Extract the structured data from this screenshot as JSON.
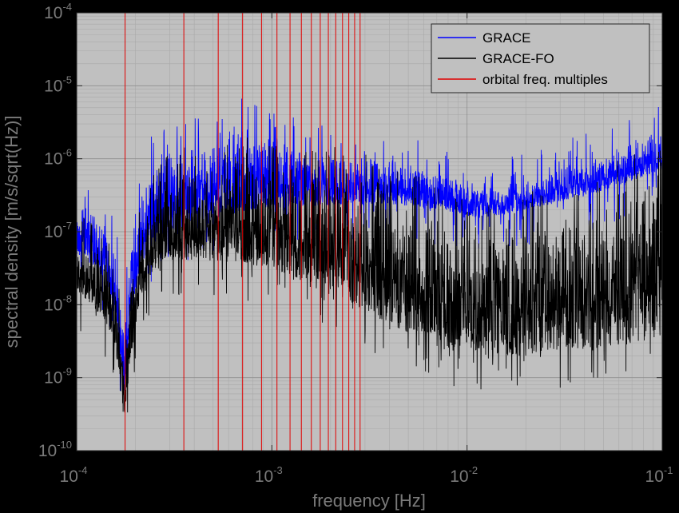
{
  "chart_data": {
    "type": "line",
    "xscale": "log",
    "yscale": "log",
    "xlim": [
      0.0001,
      0.1
    ],
    "ylim": [
      1e-10,
      0.0001
    ],
    "xlabel": "frequency [Hz]",
    "ylabel": "spectral density [m/s/sqrt(Hz)]",
    "grid": true,
    "legend_position": "top-right",
    "x_ticks": [
      {
        "base": "10",
        "exp": "-4",
        "value": 0.0001
      },
      {
        "base": "10",
        "exp": "-3",
        "value": 0.001
      },
      {
        "base": "10",
        "exp": "-2",
        "value": 0.01
      },
      {
        "base": "10",
        "exp": "-1",
        "value": 0.1
      }
    ],
    "y_ticks": [
      {
        "base": "10",
        "exp": "-10",
        "value": 1e-10
      },
      {
        "base": "10",
        "exp": "-9",
        "value": 1e-09
      },
      {
        "base": "10",
        "exp": "-8",
        "value": 1e-08
      },
      {
        "base": "10",
        "exp": "-7",
        "value": 1e-07
      },
      {
        "base": "10",
        "exp": "-6",
        "value": 1e-06
      },
      {
        "base": "10",
        "exp": "-5",
        "value": 1e-05
      },
      {
        "base": "10",
        "exp": "-4",
        "value": 0.0001
      }
    ],
    "series": [
      {
        "name": "GRACE",
        "color": "#0000ff",
        "upper": [
          [
            0.0001,
            2.5e-07
          ],
          [
            0.00012,
            2.2e-07
          ],
          [
            0.00014,
            1.4e-07
          ],
          [
            0.00016,
            5e-08
          ],
          [
            0.000175,
            6e-09
          ],
          [
            0.00019,
            6e-08
          ],
          [
            0.00021,
            3e-07
          ],
          [
            0.00024,
            1e-06
          ],
          [
            0.00028,
            1.5e-06
          ],
          [
            0.00035,
            1.6e-06
          ],
          [
            0.0005,
            1.8e-06
          ],
          [
            0.0007,
            3e-06
          ],
          [
            0.0009,
            2.5e-06
          ],
          [
            0.0012,
            2e-06
          ],
          [
            0.0018,
            1.5e-06
          ],
          [
            0.0025,
            1.2e-06
          ],
          [
            0.004,
            1e-06
          ],
          [
            0.006,
            8e-07
          ],
          [
            0.009,
            5.5e-07
          ],
          [
            0.012,
            4.2e-07
          ],
          [
            0.02,
            5.5e-07
          ],
          [
            0.04,
            1e-06
          ],
          [
            0.07,
            1.8e-06
          ],
          [
            0.1,
            2.6e-06
          ]
        ],
        "lower": [
          [
            0.0001,
            5e-08
          ],
          [
            0.00012,
            3.5e-08
          ],
          [
            0.00014,
            2e-08
          ],
          [
            0.00016,
            6e-09
          ],
          [
            0.000175,
            6e-10
          ],
          [
            0.00019,
            6e-09
          ],
          [
            0.00021,
            3e-08
          ],
          [
            0.00024,
            6e-08
          ],
          [
            0.0003,
            1e-07
          ],
          [
            0.0005,
            1.5e-07
          ],
          [
            0.0008,
            2e-07
          ],
          [
            0.0012,
            2.2e-07
          ],
          [
            0.002,
            2.3e-07
          ],
          [
            0.003,
            2.4e-07
          ],
          [
            0.005,
            2.2e-07
          ],
          [
            0.008,
            1.9e-07
          ],
          [
            0.012,
            1.5e-07
          ],
          [
            0.02,
            2e-07
          ],
          [
            0.04,
            3e-07
          ],
          [
            0.07,
            5e-07
          ],
          [
            0.1,
            7e-07
          ]
        ]
      },
      {
        "name": "GRACE-FO",
        "color": "#000000",
        "upper": [
          [
            0.0001,
            8e-08
          ],
          [
            0.00012,
            7e-08
          ],
          [
            0.00014,
            4.5e-08
          ],
          [
            0.00016,
            1.5e-08
          ],
          [
            0.000175,
            2e-09
          ],
          [
            0.00019,
            2e-08
          ],
          [
            0.00021,
            1e-07
          ],
          [
            0.00024,
            3e-07
          ],
          [
            0.00028,
            5e-07
          ],
          [
            0.0004,
            8e-07
          ],
          [
            0.0006,
            9e-07
          ],
          [
            0.001,
            9e-07
          ],
          [
            0.0015,
            8e-07
          ],
          [
            0.0025,
            6e-07
          ],
          [
            0.004,
            4e-07
          ],
          [
            0.006,
            2.5e-07
          ],
          [
            0.009,
            1.5e-07
          ],
          [
            0.012,
            1e-07
          ],
          [
            0.02,
            1.5e-07
          ],
          [
            0.04,
            3e-07
          ],
          [
            0.07,
            5.5e-07
          ],
          [
            0.1,
            8e-07
          ]
        ],
        "lower": [
          [
            0.0001,
            1.5e-08
          ],
          [
            0.00012,
            1e-08
          ],
          [
            0.00014,
            6e-09
          ],
          [
            0.00016,
            2e-09
          ],
          [
            0.000175,
            2.5e-10
          ],
          [
            0.00019,
            2e-09
          ],
          [
            0.00021,
            1e-08
          ],
          [
            0.00025,
            3e-08
          ],
          [
            0.0003,
            4e-08
          ],
          [
            0.0005,
            4e-08
          ],
          [
            0.0008,
            3.5e-08
          ],
          [
            0.0012,
            2.5e-08
          ],
          [
            0.002,
            1.5e-08
          ],
          [
            0.003,
            8e-09
          ],
          [
            0.005,
            4e-09
          ],
          [
            0.008,
            2.5e-09
          ],
          [
            0.012,
            2e-09
          ],
          [
            0.02,
            2e-09
          ],
          [
            0.04,
            2.5e-09
          ],
          [
            0.07,
            3e-09
          ],
          [
            0.1,
            3.5e-09
          ]
        ]
      },
      {
        "name": "orbital freq. multiples",
        "color": "#e00000",
        "base_frequency": 0.000177,
        "multiples": 16
      }
    ]
  }
}
